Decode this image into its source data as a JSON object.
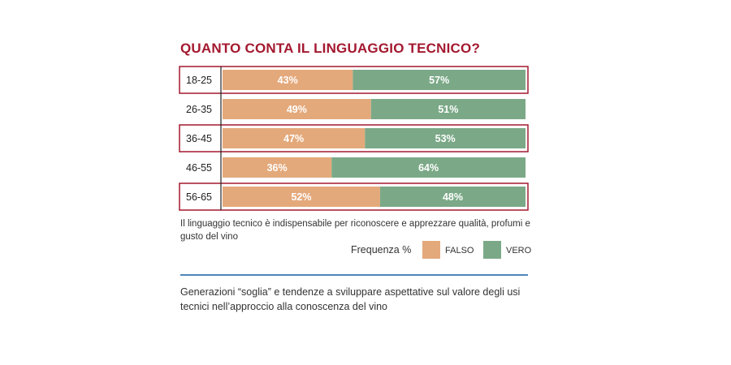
{
  "chart_data": {
    "type": "bar",
    "stacked": true,
    "orientation": "horizontal",
    "title": "QUANTO CONTA IL LINGUAGGIO TECNICO?",
    "categories": [
      "18-25",
      "26-35",
      "36-45",
      "46-55",
      "56-65"
    ],
    "highlighted_categories": [
      "18-25",
      "36-45",
      "56-65"
    ],
    "series": [
      {
        "name": "FALSO",
        "values": [
          43,
          49,
          47,
          36,
          52
        ],
        "color": "#e4a97b"
      },
      {
        "name": "VERO",
        "values": [
          57,
          51,
          53,
          64,
          48
        ],
        "color": "#7ba987"
      }
    ],
    "value_suffix": "%",
    "xlim": [
      0,
      100
    ],
    "legend_title": "Frequenza %",
    "legend_position": "bottom-right"
  },
  "caption": "Il linguaggio tecnico è indispensabile per riconoscere e apprezzare qualità, profumi e gusto del vino",
  "footer": "Generazioni “soglia” e tendenze a sviluppare aspettative sul valore degli usi tecnici nell’approccio alla conoscenza del vino",
  "colors": {
    "title": "#a3182f",
    "highlight_border": "#a3182f",
    "divider": "#4f86b8",
    "axis": "#222222"
  }
}
